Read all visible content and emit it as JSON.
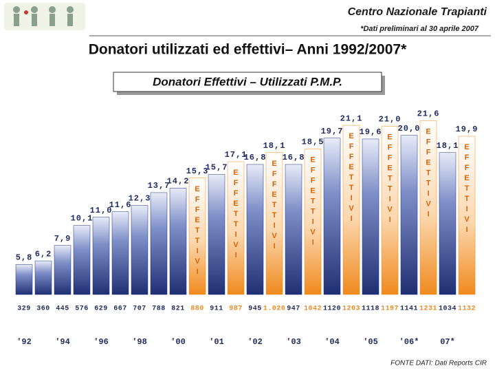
{
  "header": {
    "organization": "Centro Nazionale Trapianti",
    "note": "*Dati preliminari al 30 aprile 2007"
  },
  "chart_data": {
    "type": "bar",
    "title": "Donatori utilizzati ed effettivi– Anni 1992/2007*",
    "subtitle": "Donatori Effettivi – Utilizzati P.M.P.",
    "categories": [
      "'92",
      null,
      "'94",
      null,
      "'96",
      null,
      "'98",
      null,
      "'00",
      "'01",
      "'02",
      "'03",
      "'04",
      "'05",
      "'06*",
      "07*"
    ],
    "ylim": [
      2.5,
      23
    ],
    "series": [
      {
        "color": "#1f2f73",
        "values": [
          5.8,
          6.2,
          7.9,
          10.1,
          11.0,
          11.6,
          12.3,
          13.7,
          14.2,
          15.7,
          16.8,
          16.8,
          19.7,
          19.6,
          20.0,
          18.1
        ],
        "value_labels": [
          "5,8",
          "6,2",
          "7,9",
          "10,1",
          "11,0",
          "11,6",
          "12,3",
          "13,7",
          "14,2",
          "15,7",
          "16,8",
          "16,8",
          "19,7",
          "19,6",
          "20,0",
          "18,1"
        ],
        "counts": [
          329,
          360,
          445,
          576,
          629,
          667,
          707,
          788,
          821,
          911,
          945,
          947,
          1120,
          1118,
          1141,
          1034
        ]
      },
      {
        "name": "EFFETTIVI",
        "color": "#f08a1e",
        "values": [
          null,
          null,
          null,
          null,
          null,
          null,
          null,
          null,
          15.3,
          17.1,
          18.1,
          18.5,
          21.1,
          21.0,
          21.6,
          19.9
        ],
        "value_labels": [
          null,
          null,
          null,
          null,
          null,
          null,
          null,
          null,
          "15,3",
          "17,1",
          "18,1",
          "18,5",
          "21,1",
          "21,0",
          "21,6",
          "19,9"
        ],
        "counts": [
          null,
          null,
          null,
          null,
          null,
          null,
          null,
          null,
          880,
          987,
          {
            "value": 1020,
            "label": "1.020"
          },
          1042,
          1203,
          1197,
          1231,
          1132
        ]
      }
    ]
  },
  "footer": {
    "source": "FONTE DATI: Dati Reports CIR"
  }
}
